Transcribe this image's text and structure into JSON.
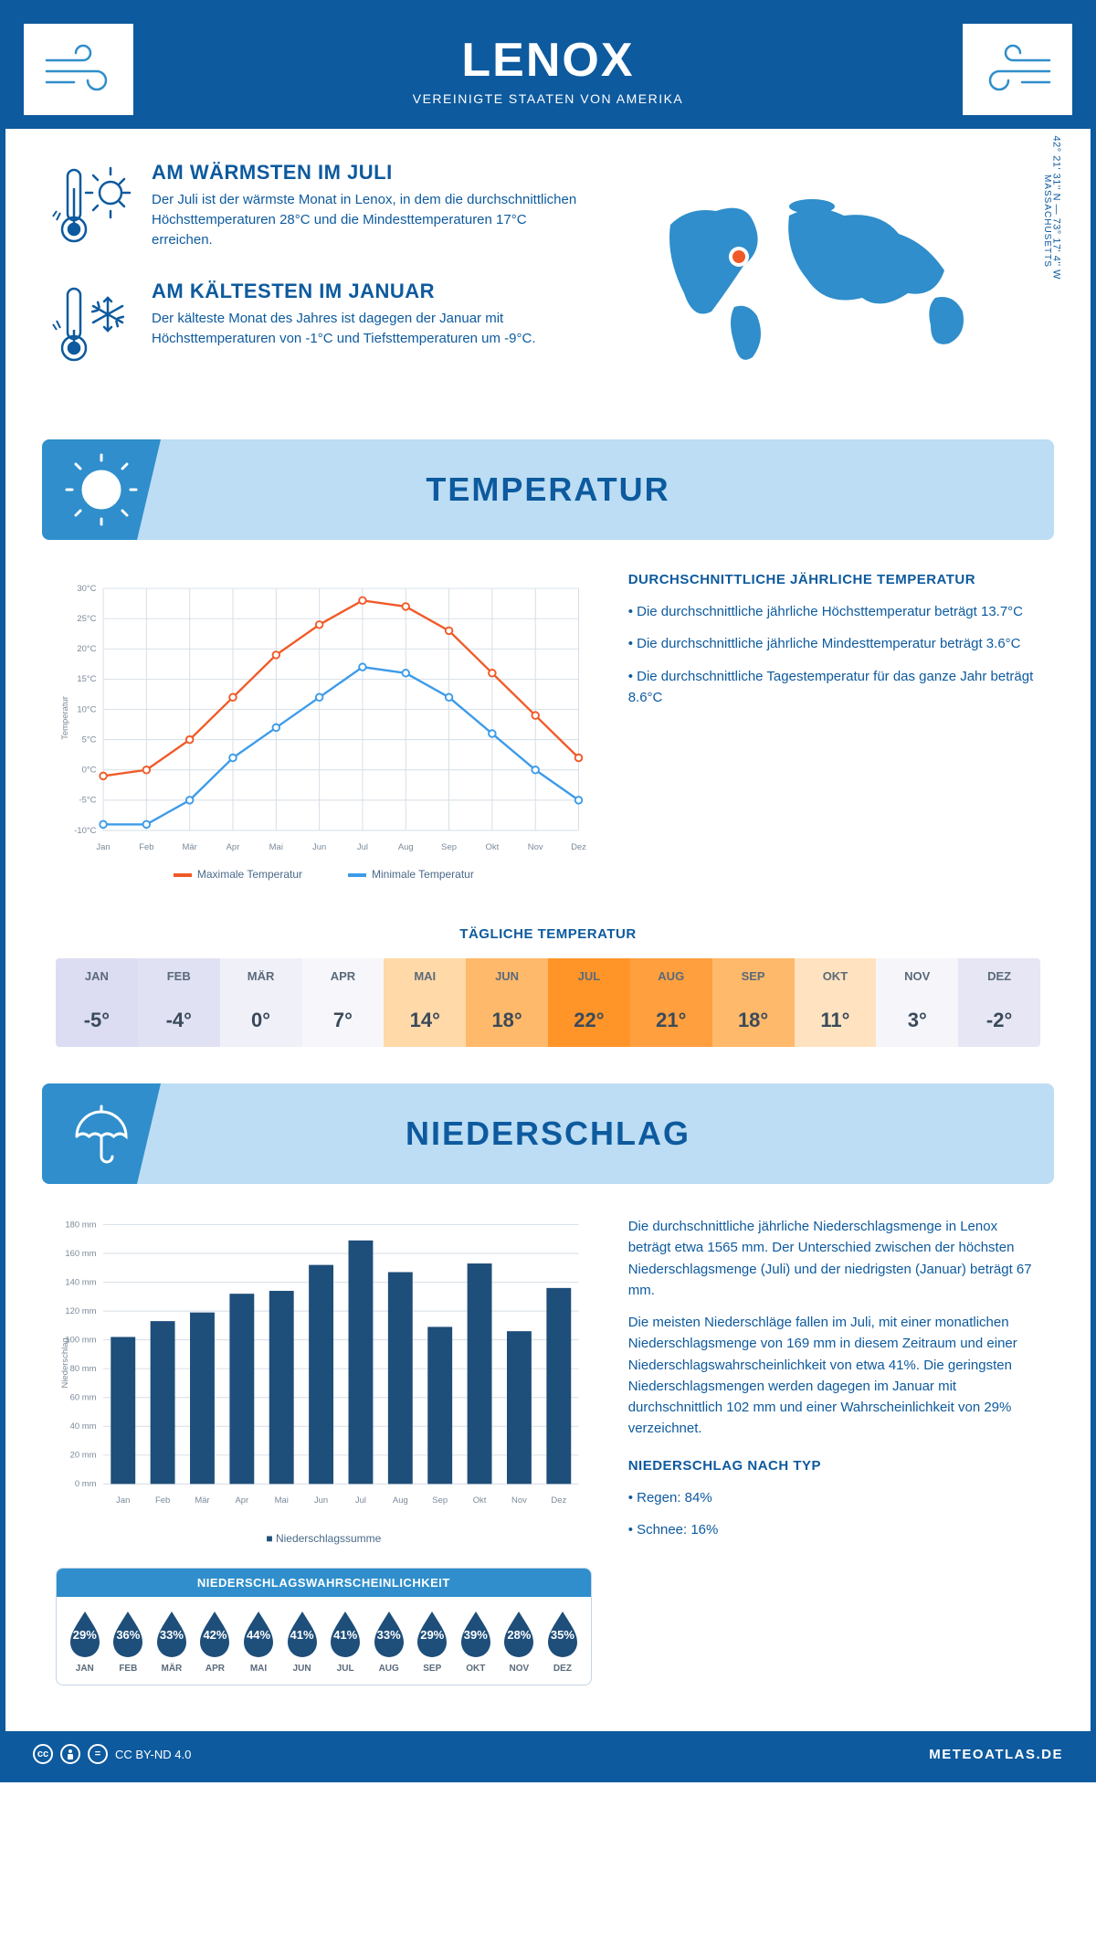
{
  "colors": {
    "primary": "#0d5a9e",
    "banner_bg": "#bcddf4",
    "banner_accent": "#2f8ecb",
    "line_max": "#f05a28",
    "line_min": "#3d9be9",
    "bar_fill": "#1e4e7a",
    "grid": "#d5dde5"
  },
  "header": {
    "title": "LENOX",
    "subtitle": "VEREINIGTE STAATEN VON AMERIKA"
  },
  "intro": {
    "warm": {
      "title": "AM WÄRMSTEN IM JULI",
      "text": "Der Juli ist der wärmste Monat in Lenox, in dem die durchschnittlichen Höchsttemperaturen 28°C und die Mindesttemperaturen 17°C erreichen."
    },
    "cold": {
      "title": "AM KÄLTESTEN IM JANUAR",
      "text": "Der kälteste Monat des Jahres ist dagegen der Januar mit Höchsttemperaturen von -1°C und Tiefsttemperaturen um -9°C."
    },
    "coords": "42° 21' 31'' N — 73° 17' 4'' W",
    "region": "MASSACHUSETTS"
  },
  "months": [
    "Jan",
    "Feb",
    "Mär",
    "Apr",
    "Mai",
    "Jun",
    "Jul",
    "Aug",
    "Sep",
    "Okt",
    "Nov",
    "Dez"
  ],
  "months_upper": [
    "JAN",
    "FEB",
    "MÄR",
    "APR",
    "MAI",
    "JUN",
    "JUL",
    "AUG",
    "SEP",
    "OKT",
    "NOV",
    "DEZ"
  ],
  "temperature": {
    "banner": "TEMPERATUR",
    "chart": {
      "type": "line",
      "y_label": "Temperatur",
      "ylim": [
        -10,
        30
      ],
      "ytick_step": 5,
      "max_series": [
        -1,
        0,
        5,
        12,
        19,
        24,
        28,
        27,
        23,
        16,
        9,
        2
      ],
      "min_series": [
        -9,
        -9,
        -5,
        2,
        7,
        12,
        17,
        16,
        12,
        6,
        0,
        -5
      ],
      "legend_max": "Maximale Temperatur",
      "legend_min": "Minimale Temperatur"
    },
    "text": {
      "title": "DURCHSCHNITTLICHE JÄHRLICHE TEMPERATUR",
      "bullets": [
        "Die durchschnittliche jährliche Höchsttemperatur beträgt 13.7°C",
        "Die durchschnittliche jährliche Mindesttemperatur beträgt 3.6°C",
        "Die durchschnittliche Tagestemperatur für das ganze Jahr beträgt 8.6°C"
      ]
    },
    "daily": {
      "title": "TÄGLICHE TEMPERATUR",
      "values": [
        "-5°",
        "-4°",
        "0°",
        "7°",
        "14°",
        "18°",
        "22°",
        "21°",
        "18°",
        "11°",
        "3°",
        "-2°"
      ],
      "cell_colors": [
        "#dcdcf2",
        "#e1e1f4",
        "#f0f0f9",
        "#f7f7fb",
        "#ffd9a8",
        "#ffb96a",
        "#ff9529",
        "#ff9f3e",
        "#ffb96a",
        "#ffe3c0",
        "#f5f5fa",
        "#e6e6f5"
      ]
    }
  },
  "precip": {
    "banner": "NIEDERSCHLAG",
    "chart": {
      "type": "bar",
      "y_label": "Niederschlag",
      "ylim": [
        0,
        180
      ],
      "ytick_step": 20,
      "values": [
        102,
        113,
        119,
        132,
        134,
        152,
        169,
        147,
        109,
        153,
        106,
        136
      ],
      "legend": "Niederschlagssumme"
    },
    "text": {
      "p1": "Die durchschnittliche jährliche Niederschlagsmenge in Lenox beträgt etwa 1565 mm. Der Unterschied zwischen der höchsten Niederschlagsmenge (Juli) und der niedrigsten (Januar) beträgt 67 mm.",
      "p2": "Die meisten Niederschläge fallen im Juli, mit einer monatlichen Niederschlagsmenge von 169 mm in diesem Zeitraum und einer Niederschlagswahrscheinlichkeit von etwa 41%. Die geringsten Niederschlagsmengen werden dagegen im Januar mit durchschnittlich 102 mm und einer Wahrscheinlichkeit von 29% verzeichnet.",
      "type_title": "NIEDERSCHLAG NACH TYP",
      "type_bullets": [
        "Regen: 84%",
        "Schnee: 16%"
      ]
    },
    "prob": {
      "title": "NIEDERSCHLAGSWAHRSCHEINLICHKEIT",
      "values": [
        "29%",
        "36%",
        "33%",
        "42%",
        "44%",
        "41%",
        "41%",
        "33%",
        "29%",
        "39%",
        "28%",
        "35%"
      ]
    }
  },
  "footer": {
    "license": "CC BY-ND 4.0",
    "brand": "METEOATLAS.DE"
  }
}
